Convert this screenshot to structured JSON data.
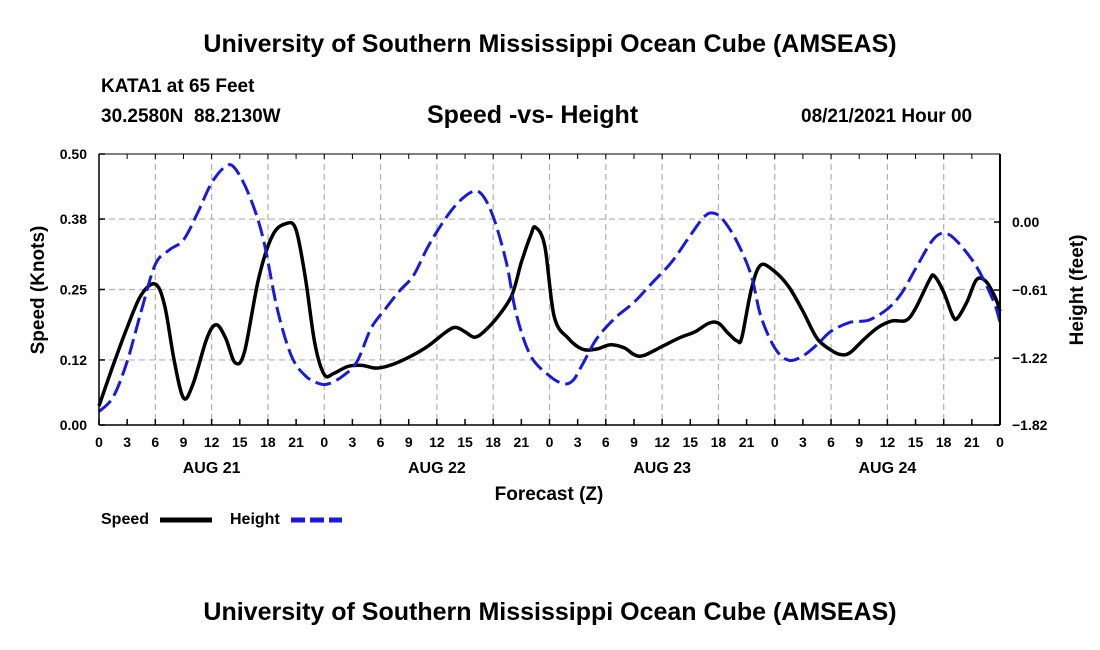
{
  "header": {
    "title": "University of Southern Mississippi Ocean Cube (AMSEAS)",
    "station": "KATA1 at 65 Feet",
    "coords": "30.2580N  88.2130W",
    "chart_title": "Speed -vs- Height",
    "run_date": "08/21/2021 Hour 00"
  },
  "footer": {
    "title": "University of Southern Mississippi Ocean Cube (AMSEAS)"
  },
  "colors": {
    "speed": "#000000",
    "height": "#1a1adc",
    "grid": "#b0b0b0"
  },
  "chart_data": {
    "type": "line",
    "title": "Speed -vs- Height",
    "xlabel": "Forecast (Z)",
    "ylabel_left": "Speed (Knots)",
    "ylabel_right": "Height (feet)",
    "x_unit": "forecast hour",
    "xlim": [
      0,
      96
    ],
    "ylim_left": [
      0,
      0.5
    ],
    "ylim_right": [
      -1.82,
      0.61
    ],
    "left_ticks": [
      0.0,
      0.12,
      0.25,
      0.38,
      0.5
    ],
    "left_tick_labels": [
      "0.00",
      "0.12",
      "0.25",
      "0.38",
      "0.50"
    ],
    "right_ticks": [
      -1.82,
      -1.22,
      -0.61,
      0.0
    ],
    "right_tick_labels": [
      "−1.82",
      "−1.22",
      "−0.61",
      "0.00"
    ],
    "x_ticks": [
      0,
      3,
      6,
      9,
      12,
      15,
      18,
      21,
      24,
      27,
      30,
      33,
      36,
      39,
      42,
      45,
      48,
      51,
      54,
      57,
      60,
      63,
      66,
      69,
      72,
      75,
      78,
      81,
      84,
      87,
      90,
      93,
      96
    ],
    "x_tick_labels": [
      "0",
      "3",
      "6",
      "9",
      "12",
      "15",
      "18",
      "21",
      "0",
      "3",
      "6",
      "9",
      "12",
      "15",
      "18",
      "21",
      "0",
      "3",
      "6",
      "9",
      "12",
      "15",
      "18",
      "21",
      "0",
      "3",
      "6",
      "9",
      "12",
      "15",
      "18",
      "21",
      "0"
    ],
    "day_labels": [
      {
        "x": 12,
        "label": "AUG 21"
      },
      {
        "x": 36,
        "label": "AUG 22"
      },
      {
        "x": 60,
        "label": "AUG 23"
      },
      {
        "x": 84,
        "label": "AUG 24"
      }
    ],
    "grid": true,
    "legend": {
      "position": "bottom-left",
      "entries": [
        {
          "name": "Speed",
          "style": "solid"
        },
        {
          "name": "Height",
          "style": "dashed"
        }
      ]
    },
    "series": [
      {
        "name": "Speed",
        "axis": "left",
        "style": "solid",
        "points": [
          [
            0,
            0.035
          ],
          [
            1.5,
            0.11
          ],
          [
            3,
            0.18
          ],
          [
            4.5,
            0.24
          ],
          [
            6,
            0.26
          ],
          [
            7,
            0.22
          ],
          [
            8,
            0.12
          ],
          [
            9,
            0.05
          ],
          [
            10,
            0.075
          ],
          [
            11.5,
            0.16
          ],
          [
            12.5,
            0.185
          ],
          [
            13.5,
            0.16
          ],
          [
            14.5,
            0.115
          ],
          [
            15.5,
            0.135
          ],
          [
            17,
            0.27
          ],
          [
            18.5,
            0.35
          ],
          [
            20,
            0.372
          ],
          [
            21,
            0.36
          ],
          [
            22,
            0.27
          ],
          [
            23,
            0.15
          ],
          [
            24,
            0.093
          ],
          [
            25,
            0.095
          ],
          [
            26.5,
            0.108
          ],
          [
            28,
            0.11
          ],
          [
            29.5,
            0.105
          ],
          [
            31,
            0.11
          ],
          [
            33,
            0.125
          ],
          [
            35,
            0.145
          ],
          [
            37,
            0.172
          ],
          [
            38,
            0.18
          ],
          [
            39,
            0.172
          ],
          [
            40,
            0.162
          ],
          [
            41,
            0.172
          ],
          [
            42.5,
            0.2
          ],
          [
            44,
            0.24
          ],
          [
            45,
            0.3
          ],
          [
            46,
            0.35
          ],
          [
            46.5,
            0.365
          ],
          [
            47.5,
            0.33
          ],
          [
            48.5,
            0.2
          ],
          [
            50,
            0.16
          ],
          [
            51.5,
            0.14
          ],
          [
            53,
            0.14
          ],
          [
            54.5,
            0.148
          ],
          [
            56,
            0.142
          ],
          [
            57,
            0.13
          ],
          [
            58,
            0.128
          ],
          [
            60,
            0.145
          ],
          [
            62,
            0.162
          ],
          [
            63.5,
            0.172
          ],
          [
            65,
            0.188
          ],
          [
            66,
            0.188
          ],
          [
            67,
            0.17
          ],
          [
            68,
            0.155
          ],
          [
            68.5,
            0.162
          ],
          [
            69.5,
            0.25
          ],
          [
            70.5,
            0.295
          ],
          [
            72,
            0.283
          ],
          [
            73.5,
            0.255
          ],
          [
            75,
            0.21
          ],
          [
            76.5,
            0.16
          ],
          [
            78,
            0.138
          ],
          [
            79,
            0.13
          ],
          [
            80,
            0.133
          ],
          [
            81.5,
            0.158
          ],
          [
            83,
            0.18
          ],
          [
            84.5,
            0.192
          ],
          [
            86,
            0.193
          ],
          [
            87,
            0.215
          ],
          [
            88.5,
            0.268
          ],
          [
            89,
            0.275
          ],
          [
            90,
            0.245
          ],
          [
            91,
            0.2
          ],
          [
            91.5,
            0.198
          ],
          [
            92.5,
            0.228
          ],
          [
            93.5,
            0.268
          ],
          [
            94.5,
            0.265
          ],
          [
            95.5,
            0.235
          ],
          [
            96,
            0.21
          ]
        ]
      },
      {
        "name": "Height",
        "axis": "right",
        "style": "dashed",
        "points": [
          [
            0,
            -1.7
          ],
          [
            1.5,
            -1.57
          ],
          [
            3,
            -1.25
          ],
          [
            4.5,
            -0.8
          ],
          [
            6,
            -0.38
          ],
          [
            7.5,
            -0.25
          ],
          [
            9,
            -0.16
          ],
          [
            10.5,
            0.08
          ],
          [
            12,
            0.35
          ],
          [
            13.5,
            0.5
          ],
          [
            14.5,
            0.48
          ],
          [
            16,
            0.24
          ],
          [
            17.5,
            -0.15
          ],
          [
            19,
            -0.78
          ],
          [
            20.5,
            -1.2
          ],
          [
            22,
            -1.38
          ],
          [
            23.5,
            -1.45
          ],
          [
            24.5,
            -1.45
          ],
          [
            26,
            -1.38
          ],
          [
            27.5,
            -1.25
          ],
          [
            29,
            -0.95
          ],
          [
            30.5,
            -0.78
          ],
          [
            32,
            -0.62
          ],
          [
            33.5,
            -0.48
          ],
          [
            35,
            -0.23
          ],
          [
            36.5,
            -0.02
          ],
          [
            38,
            0.15
          ],
          [
            39.5,
            0.26
          ],
          [
            40.5,
            0.27
          ],
          [
            41.5,
            0.15
          ],
          [
            42.5,
            -0.08
          ],
          [
            43.5,
            -0.4
          ],
          [
            44.5,
            -0.84
          ],
          [
            46,
            -1.2
          ],
          [
            48,
            -1.38
          ],
          [
            49.5,
            -1.45
          ],
          [
            50.5,
            -1.42
          ],
          [
            51.5,
            -1.28
          ],
          [
            53,
            -1.05
          ],
          [
            55,
            -0.86
          ],
          [
            57,
            -0.72
          ],
          [
            59,
            -0.54
          ],
          [
            61,
            -0.36
          ],
          [
            63,
            -0.12
          ],
          [
            64.5,
            0.05
          ],
          [
            65.5,
            0.08
          ],
          [
            66.5,
            0.02
          ],
          [
            68,
            -0.18
          ],
          [
            69.5,
            -0.48
          ],
          [
            70.5,
            -0.84
          ],
          [
            72,
            -1.13
          ],
          [
            73.5,
            -1.24
          ],
          [
            75,
            -1.2
          ],
          [
            76.5,
            -1.1
          ],
          [
            78,
            -0.98
          ],
          [
            80,
            -0.9
          ],
          [
            82,
            -0.88
          ],
          [
            84,
            -0.78
          ],
          [
            85.5,
            -0.64
          ],
          [
            87,
            -0.42
          ],
          [
            88.5,
            -0.2
          ],
          [
            89.5,
            -0.11
          ],
          [
            90.5,
            -0.11
          ],
          [
            91.5,
            -0.18
          ],
          [
            92.5,
            -0.28
          ],
          [
            93.5,
            -0.4
          ],
          [
            94.5,
            -0.56
          ],
          [
            95.5,
            -0.75
          ],
          [
            96,
            -0.9
          ]
        ]
      }
    ]
  }
}
